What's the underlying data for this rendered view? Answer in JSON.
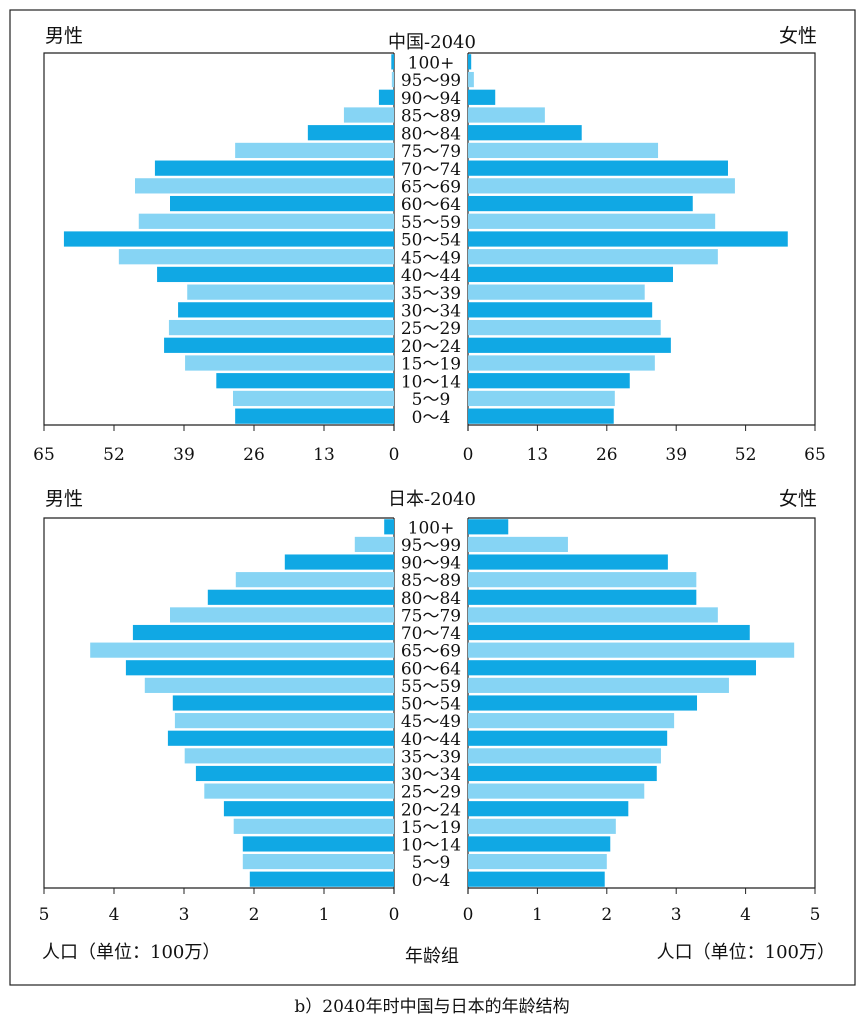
{
  "caption": "b）2040年时中国与日本的年龄结构",
  "colors": {
    "dark": "#10a8e4",
    "light": "#86d4f4",
    "axis": "#222222"
  },
  "chart_data": [
    {
      "type": "bar",
      "title": "中国-2040",
      "left_label": "男性",
      "right_label": "女性",
      "xlim": [
        0,
        65
      ],
      "ticks": [
        0,
        13,
        26,
        39,
        52,
        65
      ],
      "categories": [
        "100+",
        "95～99",
        "90～94",
        "85～89",
        "80～84",
        "75～79",
        "70～74",
        "65～69",
        "60～64",
        "55～59",
        "50～54",
        "45～49",
        "40～44",
        "35～39",
        "30～34",
        "25～29",
        "20～24",
        "15～19",
        "10～14",
        "5～9",
        "0～4"
      ],
      "series": [
        {
          "name": "男性",
          "values": [
            0.5,
            0.4,
            2.8,
            9.3,
            16,
            29.5,
            44.4,
            48.1,
            41.6,
            47.4,
            61.3,
            51.1,
            44,
            38.4,
            40.1,
            41.8,
            42.7,
            38.8,
            33,
            29.9,
            29.5
          ]
        },
        {
          "name": "女性",
          "values": [
            0.6,
            1.1,
            5.1,
            14.4,
            21.3,
            35.6,
            48.7,
            50,
            42.1,
            46.3,
            59.9,
            46.8,
            38.4,
            33.1,
            34.5,
            36.1,
            38,
            35,
            30.3,
            27.5,
            27.3
          ]
        }
      ]
    },
    {
      "type": "bar",
      "title": "日本-2040",
      "left_label": "男性",
      "right_label": "女性",
      "xlim": [
        0,
        5
      ],
      "ticks": [
        0,
        1,
        2,
        3,
        4,
        5
      ],
      "xlabel_left": "人口（单位：100万）",
      "xlabel_center": "年龄组",
      "xlabel_right": "人口（单位：100万）",
      "categories": [
        "100+",
        "95～99",
        "90～94",
        "85～89",
        "80～84",
        "75～79",
        "70～74",
        "65～69",
        "60～64",
        "55～59",
        "50～54",
        "45～49",
        "40～44",
        "35～39",
        "30～34",
        "25～29",
        "20～24",
        "15～19",
        "10～14",
        "5～9",
        "0～4"
      ],
      "series": [
        {
          "name": "男性",
          "values": [
            0.14,
            0.56,
            1.56,
            2.26,
            2.66,
            3.2,
            3.73,
            4.34,
            3.83,
            3.56,
            3.16,
            3.13,
            3.23,
            2.99,
            2.83,
            2.71,
            2.43,
            2.29,
            2.16,
            2.16,
            2.06
          ]
        },
        {
          "name": "女性",
          "values": [
            0.58,
            1.44,
            2.88,
            3.29,
            3.29,
            3.6,
            4.06,
            4.7,
            4.15,
            3.76,
            3.3,
            2.97,
            2.87,
            2.78,
            2.72,
            2.54,
            2.31,
            2.13,
            2.05,
            2.0,
            1.97
          ]
        }
      ]
    }
  ]
}
